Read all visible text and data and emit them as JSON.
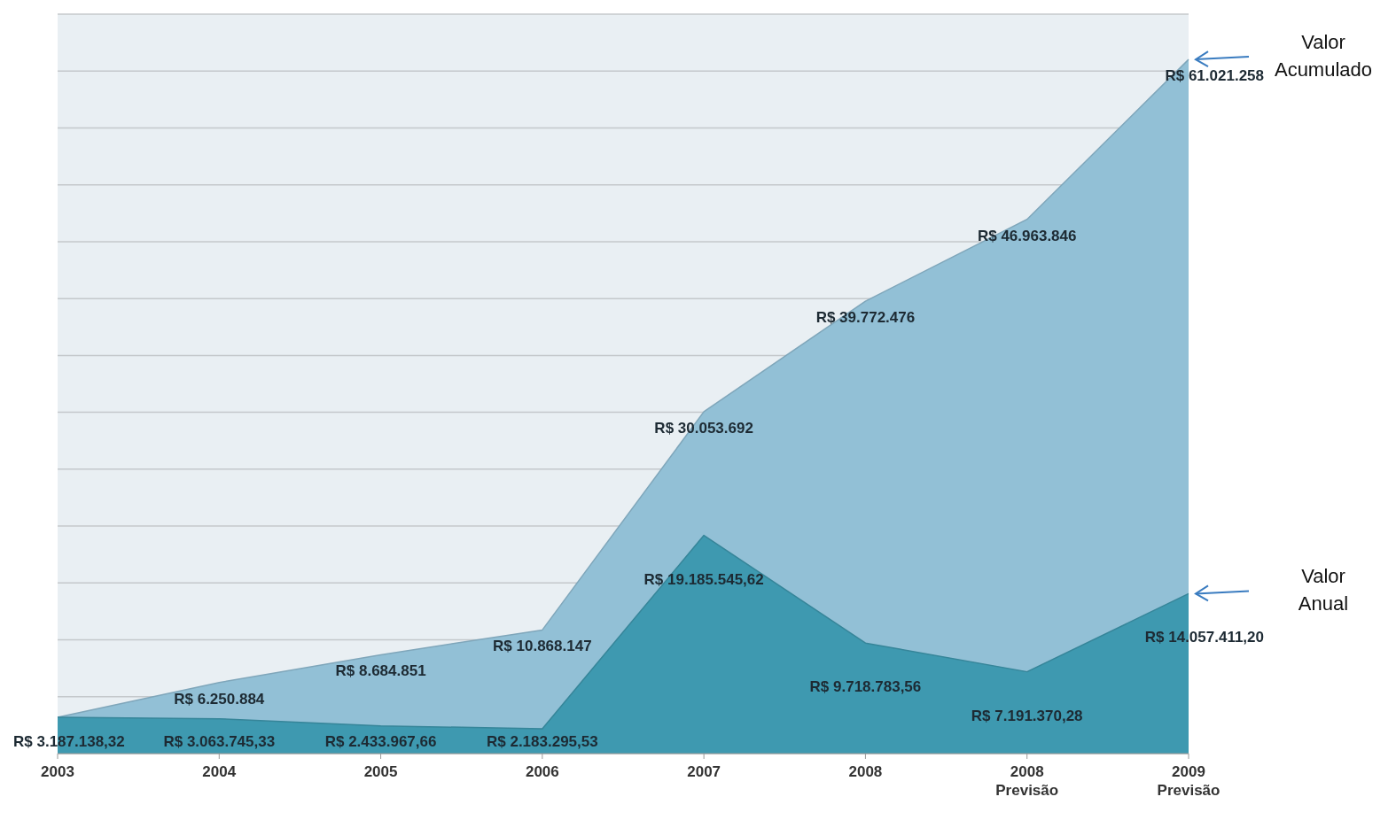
{
  "chart_data": {
    "type": "area",
    "categories": [
      "2003",
      "2004",
      "2005",
      "2006",
      "2007",
      "2008",
      "2008\nPrevisão",
      "2009\nPrevisão"
    ],
    "series": [
      {
        "name": "Valor Acumulado",
        "color": "#92c0d6",
        "values": [
          3187138.32,
          6250884,
          8684851,
          10868147,
          30053692,
          39772476,
          46963846,
          61021258
        ],
        "value_labels": [
          null,
          "R$ 6.250.884",
          "R$ 8.684.851",
          "R$ 10.868.147",
          "R$ 30.053.692",
          "R$ 39.772.476",
          "R$ 46.963.846",
          "R$ 61.021.258"
        ]
      },
      {
        "name": "Valor Anual",
        "color": "#3e99b0",
        "values": [
          3187138.32,
          3063745.33,
          2433967.66,
          2183295.53,
          19185545.62,
          9718783.56,
          7191370.28,
          14057411.2
        ],
        "value_labels": [
          "R$ 3.187.138,32",
          "R$ 3.063.745,33",
          "R$ 2.433.967,66",
          "R$ 2.183.295,53",
          "R$ 19.185.545,62",
          "R$ 9.718.783,56",
          "R$ 7.191.370,28",
          "R$ 14.057.411,20"
        ]
      }
    ],
    "ylim": [
      0,
      65000000
    ],
    "yticks": [
      {
        "value": 0,
        "label": null
      },
      {
        "value": 5000000,
        "label": null
      },
      {
        "value": 10000000,
        "label": null
      },
      {
        "value": 15000000,
        "label": null
      },
      {
        "value": 20000000,
        "label": null
      },
      {
        "value": 25000000,
        "label": null
      },
      {
        "value": 30000000,
        "label": null
      },
      {
        "value": 35000000,
        "label": null
      },
      {
        "value": 40000000,
        "label": null
      },
      {
        "value": 45000000,
        "label": null
      },
      {
        "value": 50000000,
        "label": null
      },
      {
        "value": 55000000,
        "label": null
      },
      {
        "value": 60000000,
        "label": null
      },
      {
        "value": 65000000,
        "label": null
      }
    ],
    "tick_labels": "x",
    "grid": "y"
  }
}
